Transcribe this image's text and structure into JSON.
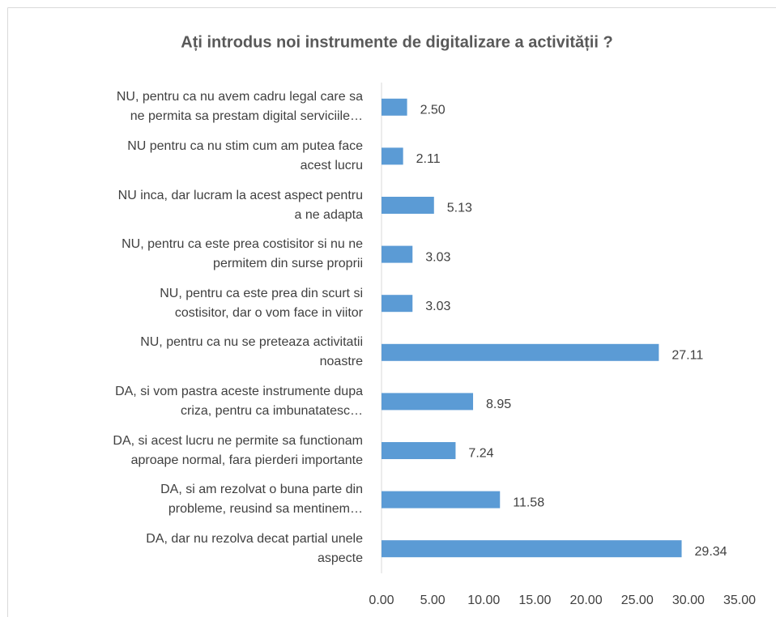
{
  "chart_data": {
    "type": "bar",
    "orientation": "horizontal",
    "title": "Ați introdus noi instrumente de digitalizare a activității ?",
    "categories": [
      "NU, pentru ca nu avem cadru legal care sa\nne permita sa prestam digital serviciile…",
      "NU pentru ca nu stim cum am putea face\nacest lucru",
      "NU inca, dar lucram la acest aspect pentru\na ne adapta",
      "NU, pentru ca este prea costisitor si nu ne\npermitem din surse proprii",
      "NU, pentru ca este prea din scurt si\ncostisitor, dar o vom face in viitor",
      "NU, pentru ca nu se preteaza activitatii\nnoastre",
      "DA, si vom pastra aceste instrumente dupa\ncriza, pentru ca imbunatatesc…",
      "DA, si acest lucru ne permite sa functionam\naproape normal, fara pierderi importante",
      "DA, si am rezolvat o buna parte din\nprobleme, reusind sa mentinem…",
      "DA, dar nu rezolva decat partial unele\naspecte"
    ],
    "values": [
      2.5,
      2.11,
      5.13,
      3.03,
      3.03,
      27.11,
      8.95,
      7.24,
      11.58,
      29.34
    ],
    "value_labels": [
      "2.50",
      "2.11",
      "5.13",
      "3.03",
      "3.03",
      "27.11",
      "8.95",
      "7.24",
      "11.58",
      "29.34"
    ],
    "color": "#5b9bd5",
    "xlim": [
      0,
      35
    ],
    "xticks": [
      {
        "value": 0,
        "label": "0.00"
      },
      {
        "value": 5,
        "label": "5.00"
      },
      {
        "value": 10,
        "label": "10.00"
      },
      {
        "value": 15,
        "label": "15.00"
      },
      {
        "value": 20,
        "label": "20.00"
      },
      {
        "value": 25,
        "label": "25.00"
      },
      {
        "value": 30,
        "label": "30.00"
      },
      {
        "value": 35,
        "label": "35.00"
      }
    ],
    "grid": false
  }
}
